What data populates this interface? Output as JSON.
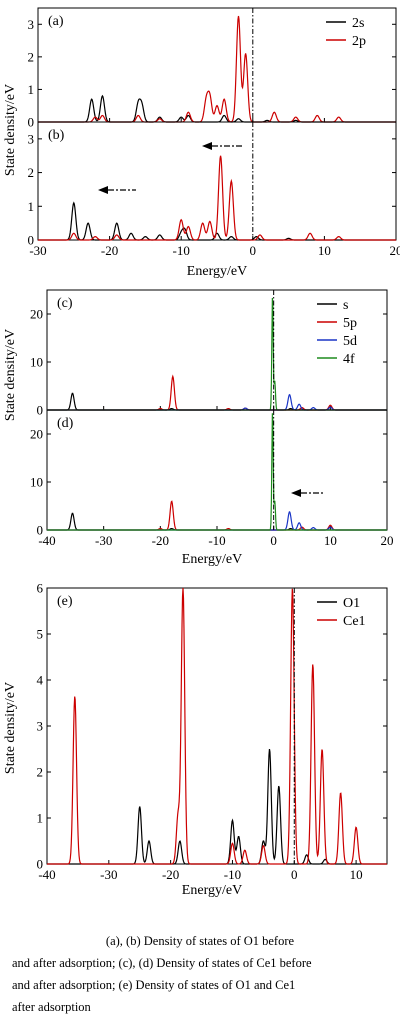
{
  "chart_data": [
    {
      "type": "line",
      "panel_label": "(a)",
      "xlim": [
        -30,
        20
      ],
      "ylim": [
        0,
        3.5
      ],
      "yticks": [
        0,
        1,
        2,
        3
      ],
      "xticks": [],
      "legend": [
        "2s",
        "2p"
      ],
      "legend_position": "top-right",
      "reference_line_x": 0,
      "series": [
        {
          "name": "2s",
          "color": "#000000",
          "peaks": [
            [
              -22.5,
              0.7
            ],
            [
              -21,
              0.8
            ],
            [
              -16,
              0.55
            ],
            [
              -15.5,
              0.5
            ],
            [
              -13,
              0.15
            ],
            [
              -10,
              0.15
            ],
            [
              -9,
              0.2
            ],
            [
              -4,
              0.2
            ],
            [
              -2,
              0.1
            ],
            [
              2,
              0.05
            ],
            [
              6,
              0.05
            ]
          ]
        },
        {
          "name": "2p",
          "color": "#cc0000",
          "peaks": [
            [
              -22,
              0.15
            ],
            [
              -21,
              0.2
            ],
            [
              -16,
              0.2
            ],
            [
              -13,
              0.1
            ],
            [
              -9,
              0.3
            ],
            [
              -6.5,
              0.65
            ],
            [
              -6,
              0.75
            ],
            [
              -5,
              0.5
            ],
            [
              -4,
              0.7
            ],
            [
              -2,
              3.25
            ],
            [
              -1,
              2.1
            ],
            [
              3,
              0.3
            ],
            [
              6,
              0.15
            ],
            [
              9,
              0.2
            ],
            [
              12,
              0.15
            ]
          ]
        }
      ]
    },
    {
      "type": "line",
      "panel_label": "(b)",
      "xlim": [
        -30,
        20
      ],
      "ylim": [
        0,
        3.5
      ],
      "yticks": [
        0,
        1,
        2,
        3
      ],
      "xticks": [
        -30,
        -20,
        -10,
        0,
        10,
        20
      ],
      "xlabel": "Energy/eV",
      "reference_line_x": 0,
      "series": [
        {
          "name": "2s",
          "color": "#000000",
          "peaks": [
            [
              -25,
              1.1
            ],
            [
              -23,
              0.5
            ],
            [
              -19,
              0.5
            ],
            [
              -17,
              0.2
            ],
            [
              -15,
              0.1
            ],
            [
              -13,
              0.15
            ],
            [
              -10,
              0.2
            ],
            [
              -9.5,
              0.3
            ],
            [
              -5,
              0.2
            ],
            [
              -3,
              0.1
            ],
            [
              0.5,
              0.1
            ],
            [
              5,
              0.05
            ]
          ]
        },
        {
          "name": "2p",
          "color": "#cc0000",
          "peaks": [
            [
              -25,
              0.2
            ],
            [
              -22,
              0.1
            ],
            [
              -19,
              0.15
            ],
            [
              -10,
              0.6
            ],
            [
              -9,
              0.4
            ],
            [
              -7,
              0.5
            ],
            [
              -6,
              0.55
            ],
            [
              -4.5,
              2.5
            ],
            [
              -3,
              1.75
            ],
            [
              1,
              0.15
            ],
            [
              8,
              0.2
            ],
            [
              12,
              0.1
            ]
          ]
        }
      ]
    },
    {
      "type": "line",
      "panel_label": "(c)",
      "xlim": [
        -40,
        20
      ],
      "ylim": [
        0,
        25
      ],
      "yticks": [
        0,
        10,
        20
      ],
      "xticks": [],
      "legend": [
        "s",
        "5p",
        "5d",
        "4f"
      ],
      "legend_position": "top-right",
      "reference_line_x": 0,
      "series": [
        {
          "name": "s",
          "color": "#000000",
          "peaks": [
            [
              -35.5,
              3.5
            ],
            [
              -18,
              0.3
            ],
            [
              3,
              0.3
            ]
          ]
        },
        {
          "name": "5p",
          "color": "#cc0000",
          "peaks": [
            [
              -17.8,
              7
            ],
            [
              -20,
              0.3
            ],
            [
              -8,
              0.3
            ],
            [
              -5,
              0.4
            ],
            [
              5,
              0.5
            ],
            [
              10,
              1
            ]
          ]
        },
        {
          "name": "5d",
          "color": "#1a35c6",
          "peaks": [
            [
              -5,
              0.4
            ],
            [
              2.8,
              3.2
            ],
            [
              4.5,
              1.2
            ],
            [
              7,
              0.5
            ],
            [
              10,
              0.6
            ]
          ]
        },
        {
          "name": "4f",
          "color": "#1e8c1e",
          "peaks": [
            [
              -0.2,
              24
            ],
            [
              0.2,
              6
            ]
          ]
        }
      ]
    },
    {
      "type": "line",
      "panel_label": "(d)",
      "xlim": [
        -40,
        20
      ],
      "ylim": [
        0,
        25
      ],
      "yticks": [
        0,
        10,
        20
      ],
      "xticks": [
        -40,
        -30,
        -20,
        -10,
        0,
        10,
        20
      ],
      "xlabel": "Energy/eV",
      "reference_line_x": 0,
      "series": [
        {
          "name": "s",
          "color": "#000000",
          "peaks": [
            [
              -35.5,
              3.5
            ],
            [
              -18,
              0.3
            ],
            [
              3,
              0.3
            ]
          ]
        },
        {
          "name": "5p",
          "color": "#cc0000",
          "peaks": [
            [
              -18,
              6
            ],
            [
              -20,
              0.3
            ],
            [
              -8,
              0.3
            ],
            [
              5,
              0.6
            ],
            [
              10,
              1
            ]
          ]
        },
        {
          "name": "5d",
          "color": "#1a35c6",
          "peaks": [
            [
              2.8,
              3.8
            ],
            [
              4.5,
              1.5
            ],
            [
              7,
              0.5
            ],
            [
              10,
              0.6
            ]
          ]
        },
        {
          "name": "4f",
          "color": "#1e8c1e",
          "peaks": [
            [
              -0.2,
              25
            ],
            [
              0.2,
              6
            ]
          ]
        }
      ]
    },
    {
      "type": "line",
      "panel_label": "(e)",
      "xlim": [
        -40,
        15
      ],
      "ylim": [
        0,
        6
      ],
      "yticks": [
        0,
        1,
        2,
        3,
        4,
        5,
        6
      ],
      "xticks": [
        -40,
        -30,
        -20,
        -10,
        0,
        10
      ],
      "xlabel": "Energy/eV",
      "legend": [
        "O1",
        "Ce1"
      ],
      "legend_position": "top-right",
      "reference_line_x": 0,
      "series": [
        {
          "name": "O1",
          "color": "#000000",
          "peaks": [
            [
              -25,
              1.25
            ],
            [
              -23.5,
              0.5
            ],
            [
              -18.5,
              0.5
            ],
            [
              -10,
              0.95
            ],
            [
              -9,
              0.6
            ],
            [
              -5,
              0.5
            ],
            [
              -4,
              2.5
            ],
            [
              -2.5,
              1.7
            ],
            [
              2,
              0.2
            ],
            [
              5,
              0.1
            ]
          ]
        },
        {
          "name": "Ce1",
          "color": "#cc0000",
          "peaks": [
            [
              -35.5,
              3.65
            ],
            [
              -18,
              6
            ],
            [
              -18.8,
              1.05
            ],
            [
              -10,
              0.45
            ],
            [
              -8,
              0.3
            ],
            [
              -5,
              0.4
            ],
            [
              -0.3,
              6
            ],
            [
              3,
              4.35
            ],
            [
              4.5,
              2.5
            ],
            [
              7.5,
              1.55
            ],
            [
              10,
              0.8
            ]
          ]
        }
      ]
    }
  ],
  "caption": {
    "line1": "(a), (b) Density of states of O1 before",
    "line2": "and after adsorption; (c), (d) Density of states of Ce1 before",
    "line3": "and after adsorption; (e) Density of states of O1 and Ce1",
    "line4": "after adsorption"
  },
  "shared_labels": {
    "ylabel": "State density/eV",
    "xlabel": "Energy/eV"
  }
}
